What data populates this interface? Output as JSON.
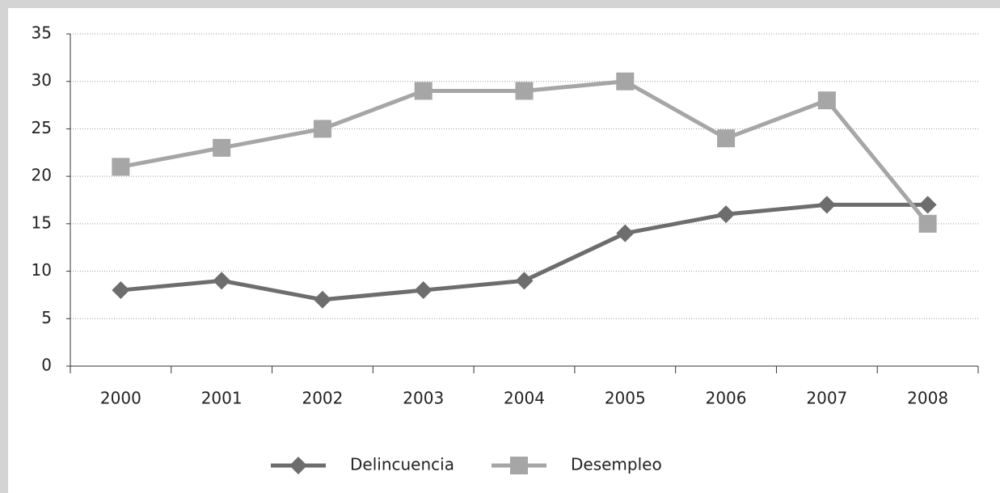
{
  "chart_data": {
    "type": "line",
    "categories": [
      "2000",
      "2001",
      "2002",
      "2003",
      "2004",
      "2005",
      "2006",
      "2007",
      "2008"
    ],
    "series": [
      {
        "name": "Delincuencia",
        "color": "#6d6d6d",
        "marker": "diamond",
        "values": [
          8,
          9,
          7,
          8,
          9,
          14,
          16,
          17,
          17
        ]
      },
      {
        "name": "Desempleo",
        "color": "#a6a6a6",
        "marker": "square",
        "values": [
          21,
          23,
          25,
          29,
          29,
          30,
          24,
          28,
          15
        ]
      }
    ],
    "ylim": [
      0,
      35
    ],
    "yticks": [
      0,
      5,
      10,
      15,
      20,
      25,
      30,
      35
    ],
    "grid": true,
    "legend": "bottom"
  }
}
